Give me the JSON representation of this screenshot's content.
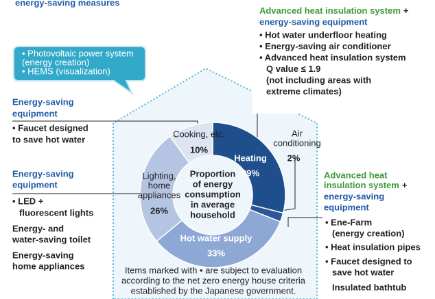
{
  "title": "energy-saving measures",
  "chart_data": {
    "type": "donut",
    "categories": [
      [
        "Heating"
      ],
      [
        "Air",
        "conditioning"
      ],
      [
        "Hot water supply"
      ],
      [
        "Lighting,",
        "home",
        "appliances"
      ],
      [
        "Cooking, etc."
      ]
    ],
    "values": [
      29,
      2,
      33,
      26,
      10
    ],
    "value_labels": [
      "29%",
      "2%",
      "33%",
      "26%",
      "10%"
    ],
    "colors": [
      "#1f4e8c",
      "#2b5597",
      "#8ea8d6",
      "#b4c4e2",
      "#dde4f2"
    ],
    "center_label": [
      "Proportion",
      "of energy",
      "consumption",
      "in average",
      "household"
    ]
  },
  "bubble": [
    "• Photovoltaic power system",
    "(energy creation)",
    "• HEMS (visualization)"
  ],
  "top_right": {
    "heading": [
      "Advanced heat insulation system",
      "+",
      "energy-saving equipment"
    ],
    "items": [
      "• Hot water underfloor heating",
      "• Energy-saving air conditioner",
      "• Advanced heat insulation system",
      "Q value ≤ 1.9",
      "(not including areas with",
      "extreme climates)"
    ]
  },
  "left_top": {
    "heading": [
      "Energy-saving",
      "equipment"
    ],
    "items": [
      "• Faucet designed",
      "to save hot water"
    ]
  },
  "left_bottom": {
    "heading": [
      "Energy-saving",
      "equipment"
    ],
    "items": [
      "• LED +",
      "fluorescent lights",
      "Energy- and",
      "water-saving toilet",
      "Energy-saving",
      "home appliances"
    ]
  },
  "right": {
    "heading": [
      "Advanced heat",
      "insulation system",
      "+",
      "energy-saving",
      "equipment"
    ],
    "items": [
      "• Ene-Farm",
      "(energy creation)",
      "• Heat insulation pipes",
      "• Faucet designed to",
      "save hot water",
      "Insulated bathtub"
    ]
  },
  "footnote": [
    "Items marked with • are subject to evaluation",
    "according to the net zero energy house criteria",
    "established by the Japanese government."
  ]
}
